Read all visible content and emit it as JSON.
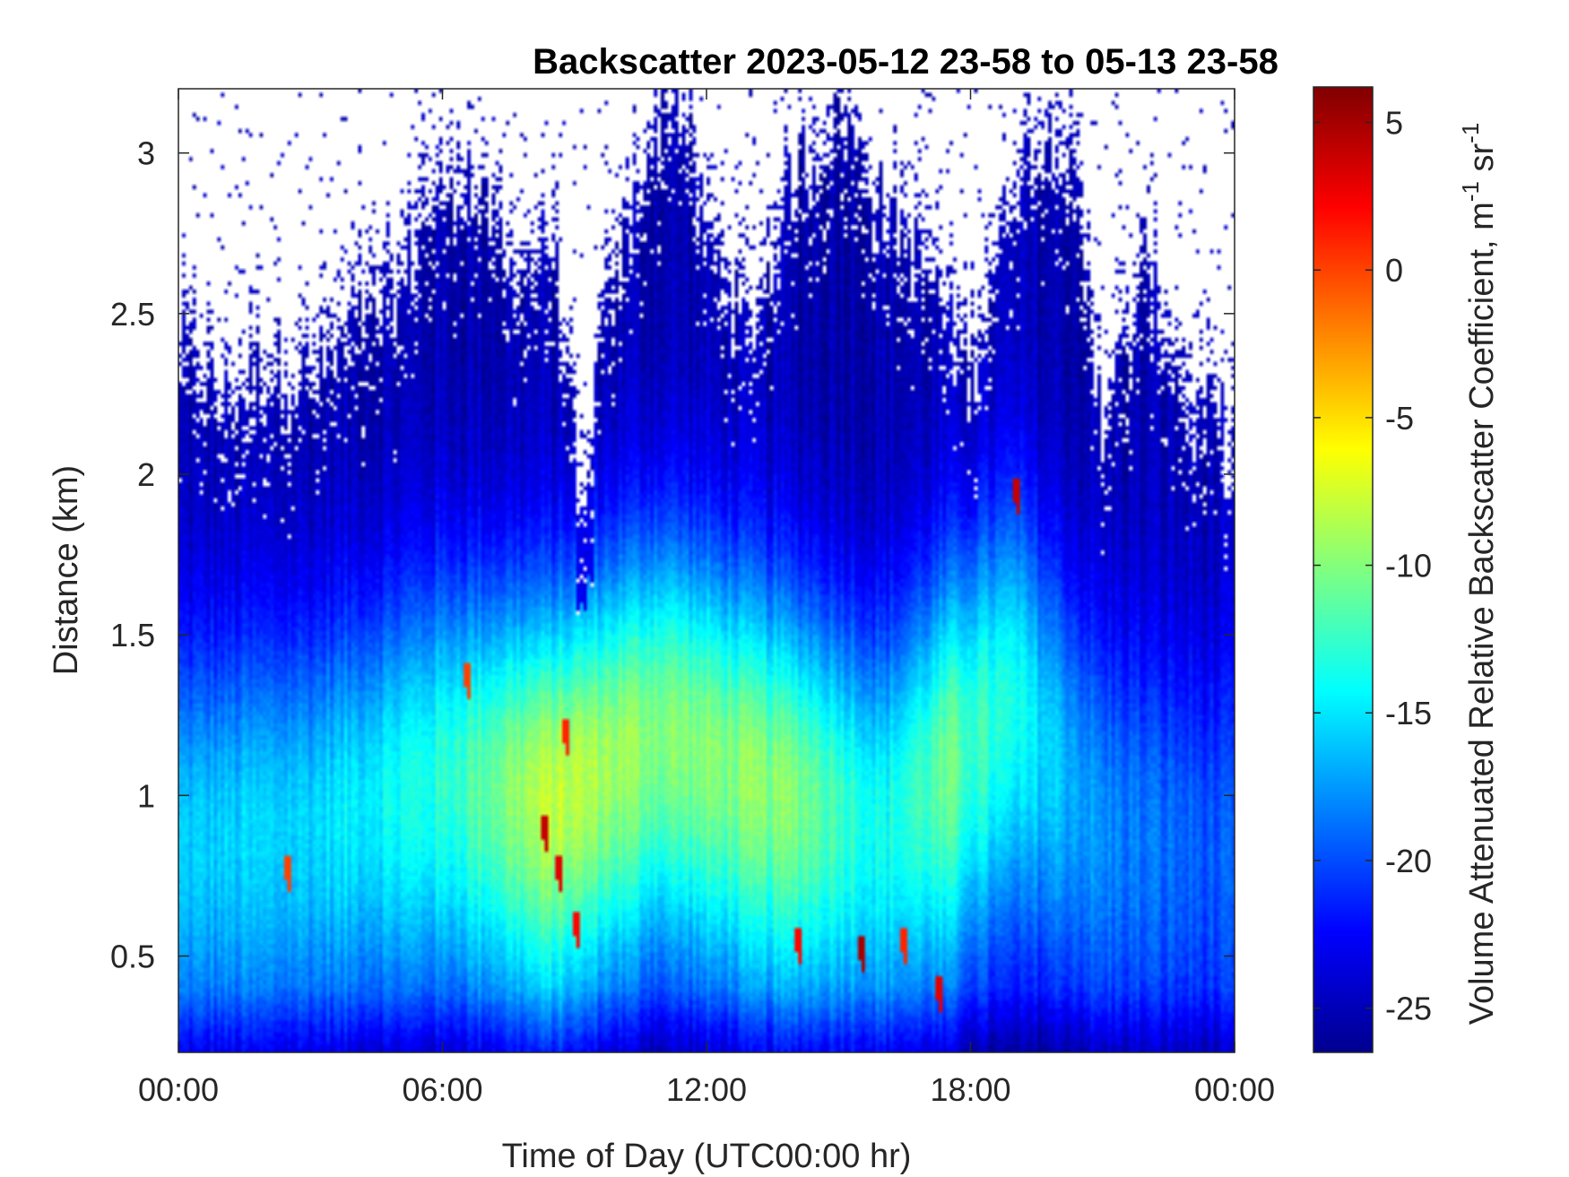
{
  "chart_data": {
    "type": "heatmap",
    "title": "Backscatter 2023-05-12 23-58 to 05-13 23-58",
    "xlabel": "Time of Day (UTC00:00 hr)",
    "ylabel": "Distance (km)",
    "colorbar_label": "Volume Attenuated Relative Backscatter Coefficient, m",
    "colorbar_label_sup1": "-1",
    "colorbar_label_mid": " sr",
    "colorbar_label_sup2": "-1",
    "xlim": [
      0,
      24
    ],
    "ylim": [
      0.2,
      3.2
    ],
    "clim": [
      -26.5,
      6.2
    ],
    "colormap": "jet",
    "no_data_color": "#ffffff",
    "x_ticks": [
      {
        "value": 0,
        "label": "00:00"
      },
      {
        "value": 6,
        "label": "06:00"
      },
      {
        "value": 12,
        "label": "12:00"
      },
      {
        "value": 18,
        "label": "18:00"
      },
      {
        "value": 24,
        "label": "00:00"
      }
    ],
    "y_ticks": [
      {
        "value": 0.5,
        "label": "0.5"
      },
      {
        "value": 1,
        "label": "1"
      },
      {
        "value": 1.5,
        "label": "1.5"
      },
      {
        "value": 2,
        "label": "2"
      },
      {
        "value": 2.5,
        "label": "2.5"
      },
      {
        "value": 3,
        "label": "3"
      }
    ],
    "colorbar_ticks": [
      {
        "value": 5,
        "label": "5"
      },
      {
        "value": 0,
        "label": "0"
      },
      {
        "value": -5,
        "label": "-5"
      },
      {
        "value": -10,
        "label": "-10"
      },
      {
        "value": -15,
        "label": "-15"
      },
      {
        "value": -20,
        "label": "-20"
      },
      {
        "value": -25,
        "label": "-25"
      }
    ],
    "signal_top_km": [
      {
        "t": 0,
        "h": 2.35
      },
      {
        "t": 1,
        "h": 2.2
      },
      {
        "t": 2,
        "h": 2.3
      },
      {
        "t": 3,
        "h": 2.25
      },
      {
        "t": 4,
        "h": 2.4
      },
      {
        "t": 5,
        "h": 2.5
      },
      {
        "t": 5.5,
        "h": 2.8
      },
      {
        "t": 6.5,
        "h": 2.9
      },
      {
        "t": 7.5,
        "h": 2.6
      },
      {
        "t": 8.5,
        "h": 2.7
      },
      {
        "t": 9.2,
        "h": 1.7
      },
      {
        "t": 9.5,
        "h": 2.3
      },
      {
        "t": 10.5,
        "h": 2.9
      },
      {
        "t": 11.3,
        "h": 3.2
      },
      {
        "t": 12,
        "h": 2.7
      },
      {
        "t": 13,
        "h": 2.4
      },
      {
        "t": 14,
        "h": 2.9
      },
      {
        "t": 15,
        "h": 3.1
      },
      {
        "t": 16,
        "h": 2.8
      },
      {
        "t": 17,
        "h": 2.6
      },
      {
        "t": 18,
        "h": 2.3
      },
      {
        "t": 19,
        "h": 2.9
      },
      {
        "t": 20,
        "h": 3.1
      },
      {
        "t": 21,
        "h": 2.2
      },
      {
        "t": 21.5,
        "h": 2.3
      },
      {
        "t": 22,
        "h": 2.6
      },
      {
        "t": 23,
        "h": 2.15
      },
      {
        "t": 24,
        "h": 2.1
      }
    ],
    "aerosol_layer": [
      {
        "t": 0,
        "center_km": 0.85,
        "peak": -16
      },
      {
        "t": 3,
        "center_km": 0.9,
        "peak": -15.5
      },
      {
        "t": 6,
        "center_km": 1.05,
        "peak": -13
      },
      {
        "t": 8.5,
        "center_km": 1.0,
        "peak": -8
      },
      {
        "t": 11,
        "center_km": 1.2,
        "peak": -10
      },
      {
        "t": 14,
        "center_km": 1.0,
        "peak": -10
      },
      {
        "t": 16,
        "center_km": 0.9,
        "peak": -14
      },
      {
        "t": 17.5,
        "center_km": 1.1,
        "peak": -11
      },
      {
        "t": 19,
        "center_km": 1.3,
        "peak": -14
      },
      {
        "t": 21,
        "center_km": 0.9,
        "peak": -18
      },
      {
        "t": 24,
        "center_km": 0.8,
        "peak": -20
      }
    ],
    "hotspots": [
      {
        "t": 8.3,
        "h": 0.9,
        "value": 4
      },
      {
        "t": 8.6,
        "h": 0.78,
        "value": 3
      },
      {
        "t": 9.0,
        "h": 0.6,
        "value": 2
      },
      {
        "t": 8.8,
        "h": 1.2,
        "value": 1
      },
      {
        "t": 14.1,
        "h": 0.55,
        "value": 2
      },
      {
        "t": 15.5,
        "h": 0.53,
        "value": 5
      },
      {
        "t": 16.5,
        "h": 0.55,
        "value": 1
      },
      {
        "t": 17.3,
        "h": 0.4,
        "value": 3
      },
      {
        "t": 19.0,
        "h": 1.95,
        "value": 4
      },
      {
        "t": 6.6,
        "h": 1.38,
        "value": 0
      },
      {
        "t": 2.5,
        "h": 0.78,
        "value": 0
      }
    ],
    "grid": false
  }
}
